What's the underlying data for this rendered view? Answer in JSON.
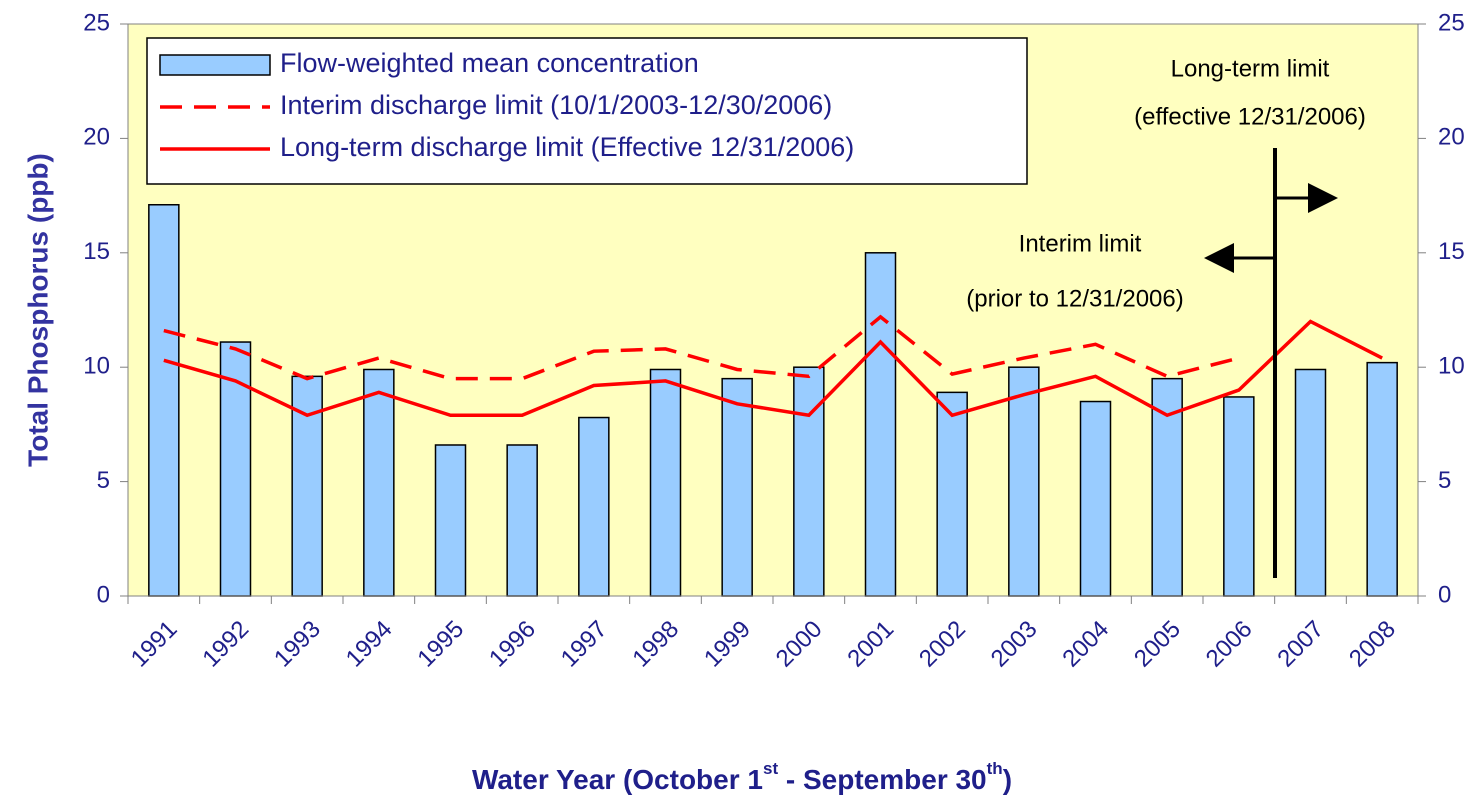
{
  "chart_data": {
    "type": "bar",
    "ylabel": "Total Phosphorus (ppb)",
    "xlabel_parts": [
      "Water Year (October 1",
      "st",
      " - September 30",
      "th",
      ")"
    ],
    "categories": [
      "1991",
      "1992",
      "1993",
      "1994",
      "1995",
      "1996",
      "1997",
      "1998",
      "1999",
      "2000",
      "2001",
      "2002",
      "2003",
      "2004",
      "2005",
      "2006",
      "2007",
      "2008"
    ],
    "series": [
      {
        "name": "Flow-weighted mean concentration",
        "kind": "bar",
        "color": "#99ccff",
        "values": [
          17.1,
          11.1,
          9.6,
          9.9,
          6.6,
          6.6,
          7.8,
          9.9,
          9.5,
          10.0,
          15.0,
          8.9,
          10.0,
          8.5,
          9.5,
          8.7,
          9.9,
          10.2
        ]
      },
      {
        "name": "Interim discharge limit (10/1/2003-12/30/2006)",
        "kind": "line",
        "dashed": true,
        "color": "#ff0000",
        "values": [
          11.6,
          10.8,
          9.5,
          10.4,
          9.5,
          9.5,
          10.7,
          10.8,
          9.9,
          9.6,
          12.2,
          9.7,
          10.4,
          11.0,
          9.6,
          10.4,
          null,
          null
        ]
      },
      {
        "name": "Long-term discharge limit (Effective 12/31/2006)",
        "kind": "line",
        "dashed": false,
        "color": "#ff0000",
        "values": [
          10.3,
          9.4,
          7.9,
          8.9,
          7.9,
          7.9,
          9.2,
          9.4,
          8.4,
          7.9,
          11.1,
          7.9,
          8.8,
          9.6,
          7.9,
          9.0,
          12.0,
          10.4
        ]
      }
    ],
    "ylim": [
      0,
      25
    ],
    "yticks": [
      0,
      5,
      10,
      15,
      20,
      25
    ],
    "y2lim": [
      0,
      25
    ],
    "y2ticks": [
      0,
      5,
      10,
      15,
      20,
      25
    ],
    "plot_background": "#ffffc0",
    "annotations": [
      "Long-term limit",
      "(effective 12/31/2006)",
      "Interim limit",
      "(prior to 12/31/2006)"
    ]
  }
}
